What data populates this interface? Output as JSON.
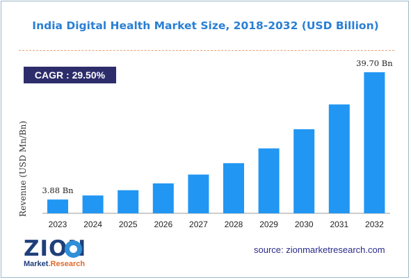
{
  "chart_data": {
    "type": "bar",
    "title": "India Digital Health Market Size, 2018-2032 (USD Billion)",
    "ylabel": "Revenue (USD Mn/Bn)",
    "xlabel": "",
    "categories": [
      "2023",
      "2024",
      "2025",
      "2026",
      "2027",
      "2028",
      "2029",
      "2030",
      "2031",
      "2032"
    ],
    "values": [
      3.88,
      5.02,
      6.5,
      8.42,
      10.9,
      14.11,
      18.27,
      23.66,
      30.64,
      39.7
    ],
    "data_labels": [
      {
        "index": 0,
        "text": "3.88 Bn"
      },
      {
        "index": 9,
        "text": "39.70 Bn"
      }
    ],
    "ylim": [
      0,
      44
    ],
    "grid": false,
    "bar_color": "#2196f3"
  },
  "cagr": {
    "label": "CAGR :  29.50%",
    "bg_color": "#2d2d6b"
  },
  "logo": {
    "name": "ZION",
    "sub_left": "Market",
    "sub_right": ".Research"
  },
  "source": "source: zionmarketresearch.com"
}
